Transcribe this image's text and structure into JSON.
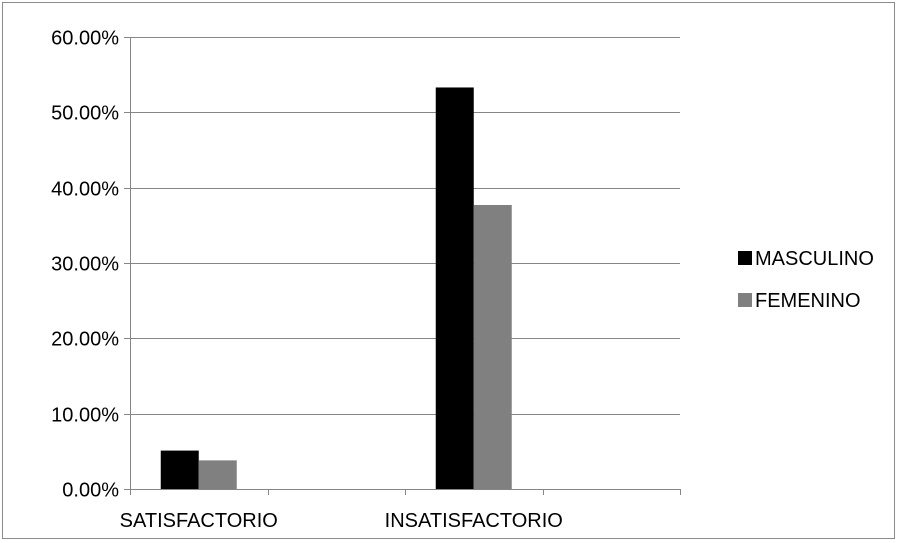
{
  "chart_data": {
    "type": "bar",
    "categories": [
      "SATISFACTORIO",
      "INSATISFACTORIO"
    ],
    "series": [
      {
        "name": "MASCULINO",
        "values": [
          5.1,
          53.3
        ],
        "color": "#000000"
      },
      {
        "name": "FEMENINO",
        "values": [
          3.8,
          37.7
        ],
        "color": "#808080"
      }
    ],
    "y_ticks": [
      "0.00%",
      "10.00%",
      "20.00%",
      "30.00%",
      "40.00%",
      "50.00%",
      "60.00%"
    ],
    "ylim": [
      0,
      60
    ],
    "grid": true,
    "legend": "right",
    "title": "",
    "xlabel": "",
    "ylabel": ""
  }
}
